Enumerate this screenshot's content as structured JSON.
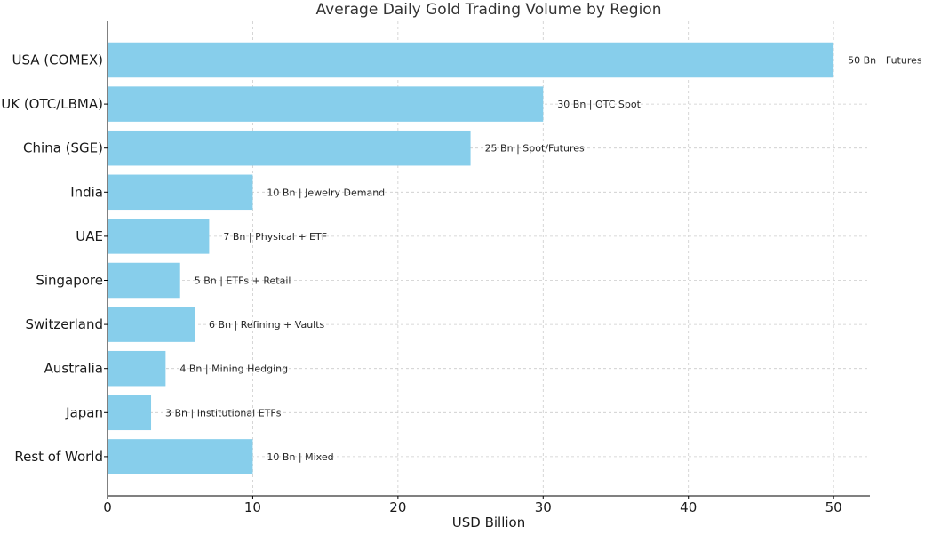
{
  "chart_data": {
    "type": "bar",
    "orientation": "horizontal",
    "title": "Average Daily Gold Trading Volume by Region",
    "xlabel": "USD Billion",
    "ylabel": "",
    "xlim": [
      0,
      52.5
    ],
    "xticks": [
      0,
      10,
      20,
      30,
      40,
      50
    ],
    "grid": true,
    "categories": [
      "USA (COMEX)",
      "UK (OTC/LBMA)",
      "China (SGE)",
      "India",
      "UAE",
      "Singapore",
      "Switzerland",
      "Australia",
      "Japan",
      "Rest of World"
    ],
    "values": [
      50,
      30,
      25,
      10,
      7,
      5,
      6,
      4,
      3,
      10
    ],
    "bar_labels": [
      "50 Bn | Futures",
      "30 Bn | OTC Spot",
      "25 Bn | Spot/Futures",
      "10 Bn | Jewelry Demand",
      "7 Bn | Physical + ETF",
      "5 Bn | ETFs + Retail",
      "6 Bn | Refining + Vaults",
      "4 Bn | Mining Hedging",
      "3 Bn | Institutional ETFs",
      "10 Bn | Mixed"
    ],
    "bar_color": "#87ceeb",
    "grid_color": "#cccccc"
  }
}
